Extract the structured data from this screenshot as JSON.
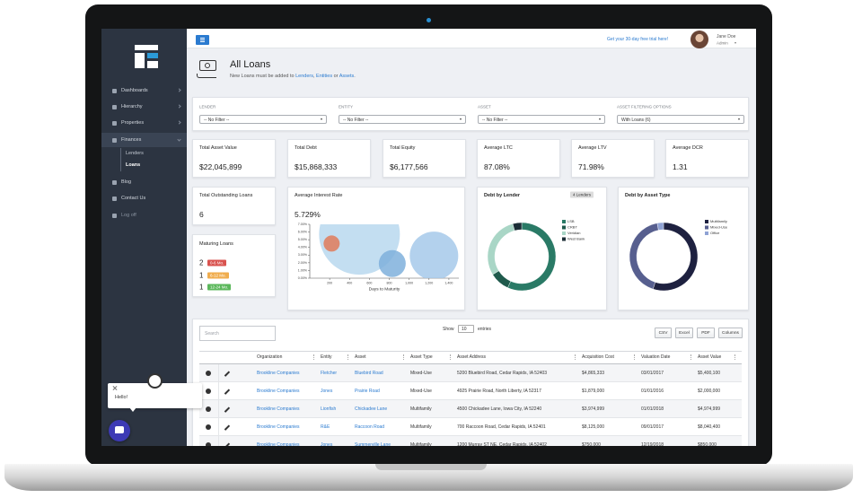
{
  "sidebar": {
    "items": [
      "Dashboards",
      "Hierarchy",
      "Properties",
      "Finances",
      "Blog",
      "Contact Us",
      "Log off"
    ],
    "finances_submenu": [
      "Lenders",
      "Loans"
    ],
    "active_submenu_index": 1
  },
  "topbar": {
    "trial_link": "Get your 30-day free trial here!",
    "user_name": "Jane Doe",
    "user_role": "Admin"
  },
  "page": {
    "title": "All Loans",
    "subtitle": [
      {
        "text": "New Loans must be added to ",
        "link": false
      },
      {
        "text": "Lenders",
        "link": true
      },
      {
        "text": ", ",
        "link": false
      },
      {
        "text": "Entities",
        "link": true
      },
      {
        "text": " or ",
        "link": false
      },
      {
        "text": "Assets",
        "link": true
      },
      {
        "text": ".",
        "link": false
      }
    ]
  },
  "filters": [
    {
      "label": "LENDER",
      "value": "-- No Filter --"
    },
    {
      "label": "ENTITY",
      "value": "-- No Filter --"
    },
    {
      "label": "ASSET",
      "value": "-- No Filter --"
    },
    {
      "label": "ASSET FILTERING OPTIONS",
      "value": "With Loans (6)"
    }
  ],
  "kpis": [
    {
      "label": "Total Asset Value",
      "value": "$22,045,899"
    },
    {
      "label": "Total Debt",
      "value": "$15,868,333"
    },
    {
      "label": "Total Equity",
      "value": "$6,177,566"
    },
    {
      "label": "Average LTC",
      "value": "87.08%"
    },
    {
      "label": "Average LTV",
      "value": "71.98%"
    },
    {
      "label": "Average DCR",
      "value": "1.31"
    },
    {
      "label": "Total Outstanding Loans",
      "value": "6"
    }
  ],
  "maturing_loans": {
    "title": "Maturing Loans",
    "rows": [
      {
        "count": 2,
        "range": "0-6 Mo.",
        "color": "#d9534f"
      },
      {
        "count": 1,
        "range": "6-12 Mo.",
        "color": "#f0ad4e"
      },
      {
        "count": 1,
        "range": "12-24 Mo.",
        "color": "#5cb85c"
      }
    ]
  },
  "chart_data": [
    {
      "type": "bubble",
      "title": "Average Interest Rate",
      "subtitle": "5.729%",
      "xlabel": "Days to Maturity",
      "xlim": [
        0,
        1500
      ],
      "ylim": [
        0,
        7
      ],
      "xticks": [
        200,
        400,
        600,
        800,
        {
          "value": 1000,
          "label": "1,000"
        },
        {
          "value": 1200,
          "label": "1,200"
        },
        {
          "value": 1400,
          "label": "1,400"
        }
      ],
      "yticks": [
        {
          "value": 0,
          "label": "0.00%"
        },
        {
          "value": 1,
          "label": "1.00%"
        },
        {
          "value": 2,
          "label": "2.00%"
        },
        {
          "value": 3,
          "label": "3.00%"
        },
        {
          "value": 4,
          "label": "4.00%"
        },
        {
          "value": 5,
          "label": "5.00%"
        },
        {
          "value": 6,
          "label": "6.00%"
        },
        {
          "value": 7,
          "label": "7.00%"
        }
      ],
      "series": [
        {
          "x": [
            500,
            220,
            830,
            1250
          ],
          "values": [
            5.7,
            4.5,
            1.9,
            2.9
          ],
          "sizes": [
            45,
            9,
            15,
            27
          ],
          "colors": [
            "#b9d8ee",
            "#e07b5a",
            "#7fb0dc",
            "#a6c9ea"
          ]
        }
      ]
    },
    {
      "type": "donut",
      "title": "Debt by Lender",
      "badge": "4 Lenders",
      "categories": [
        "LSB",
        "CRBT",
        "Veridian",
        "West Bank"
      ],
      "values": [
        9000000,
        1500000,
        4700000,
        668333
      ],
      "colors": [
        "#2a7a66",
        "#1f5a4c",
        "#a9d6c6",
        "#1b2d36"
      ]
    },
    {
      "type": "donut",
      "title": "Debt by Asset Type",
      "categories": [
        "Multifamily",
        "Mixed-Use",
        "Office"
      ],
      "values": [
        55,
        42,
        3
      ],
      "colors": [
        "#1e2140",
        "#575f8f",
        "#8fa2d4"
      ]
    }
  ],
  "table": {
    "search_placeholder": "Search",
    "show_label": "Show",
    "page_size": 10,
    "entries_label": "entries",
    "buttons": [
      "CSV",
      "Excel",
      "PDF",
      "Columns"
    ],
    "columns": [
      "Organization",
      "Entity",
      "Asset",
      "Asset Type",
      "Asset Address",
      "Acquisition Cost",
      "Valuation Date",
      "Asset Value"
    ],
    "link_columns": [
      0,
      1,
      2
    ],
    "rows": [
      [
        "Brookline Companies",
        "Fletcher",
        "Bluebird Road",
        "Mixed-Use",
        "5200 Bluebird Road, Cedar Rapids, IA 52403",
        "$4,865,333",
        "03/01/2017",
        "$5,400,100"
      ],
      [
        "Brookline Companies",
        "Jones",
        "Prairie Road",
        "Mixed-Use",
        "4925 Prairie Road, North Liberty, IA 52317",
        "$1,879,000",
        "01/01/2016",
        "$2,000,000"
      ],
      [
        "Brookline Companies",
        "Lionfish",
        "Chickadee Lane",
        "Multifamily",
        "4500 Chickadee Lane, Iowa City, IA 52240",
        "$3,974,999",
        "01/01/2018",
        "$4,974,999"
      ],
      [
        "Brookline Companies",
        "R&E",
        "Raccoon Road",
        "Multifamily",
        "700 Raccoon Road, Cedar Rapids, IA 52401",
        "$8,125,000",
        "09/01/2017",
        "$8,040,400"
      ],
      [
        "Brookline Companies",
        "Jones",
        "Summerville Lane",
        "Multifamily",
        "1200 Murray ST NE, Cedar Rapids, IA 52402",
        "$750,000",
        "12/19/2018",
        "$850,000"
      ]
    ]
  },
  "chat": {
    "message": "Hello!"
  }
}
